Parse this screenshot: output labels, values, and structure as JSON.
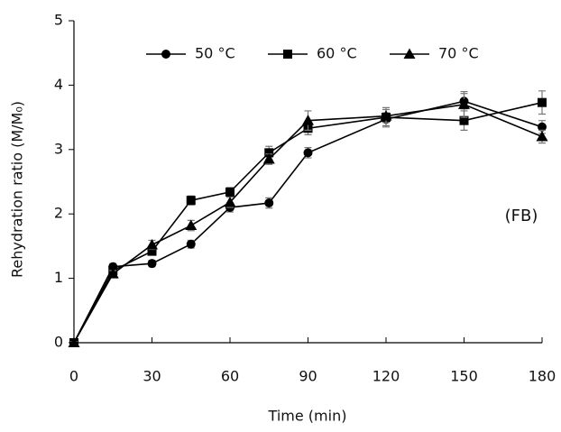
{
  "chart_data": {
    "type": "line",
    "xlabel": "Time (min)",
    "ylabel": "Rehydration ratio (M/M₀)",
    "annotation": "(FB)",
    "x": [
      0,
      15,
      30,
      45,
      60,
      75,
      90,
      120,
      150,
      180
    ],
    "series": [
      {
        "name": "50 °C",
        "color": "#000000",
        "marker": "circle",
        "values": [
          0,
          1.18,
          1.23,
          1.53,
          2.1,
          2.17,
          2.95,
          3.47,
          3.75,
          3.35
        ],
        "errors": [
          0.02,
          0.05,
          0.05,
          0.06,
          0.07,
          0.08,
          0.08,
          0.1,
          0.12,
          0.1
        ]
      },
      {
        "name": "60 °C",
        "color": "#000000",
        "marker": "square",
        "values": [
          0,
          1.12,
          1.42,
          2.21,
          2.34,
          2.95,
          3.33,
          3.5,
          3.45,
          3.73
        ],
        "errors": [
          0.02,
          0.05,
          0.06,
          0.07,
          0.07,
          0.1,
          0.1,
          0.15,
          0.15,
          0.18
        ]
      },
      {
        "name": "70 °C",
        "color": "#000000",
        "marker": "triangle",
        "values": [
          0,
          1.07,
          1.52,
          1.82,
          2.18,
          2.85,
          3.45,
          3.52,
          3.7,
          3.2
        ],
        "errors": [
          0.02,
          0.05,
          0.07,
          0.08,
          0.08,
          0.08,
          0.15,
          0.1,
          0.2,
          0.1
        ]
      }
    ],
    "xlim": [
      0,
      180
    ],
    "xticks": [
      0,
      30,
      60,
      90,
      120,
      150,
      180
    ],
    "ylim": [
      0,
      5
    ],
    "yticks": [
      0,
      1,
      2,
      3,
      4,
      5
    ],
    "grid": false,
    "legend": "top"
  }
}
